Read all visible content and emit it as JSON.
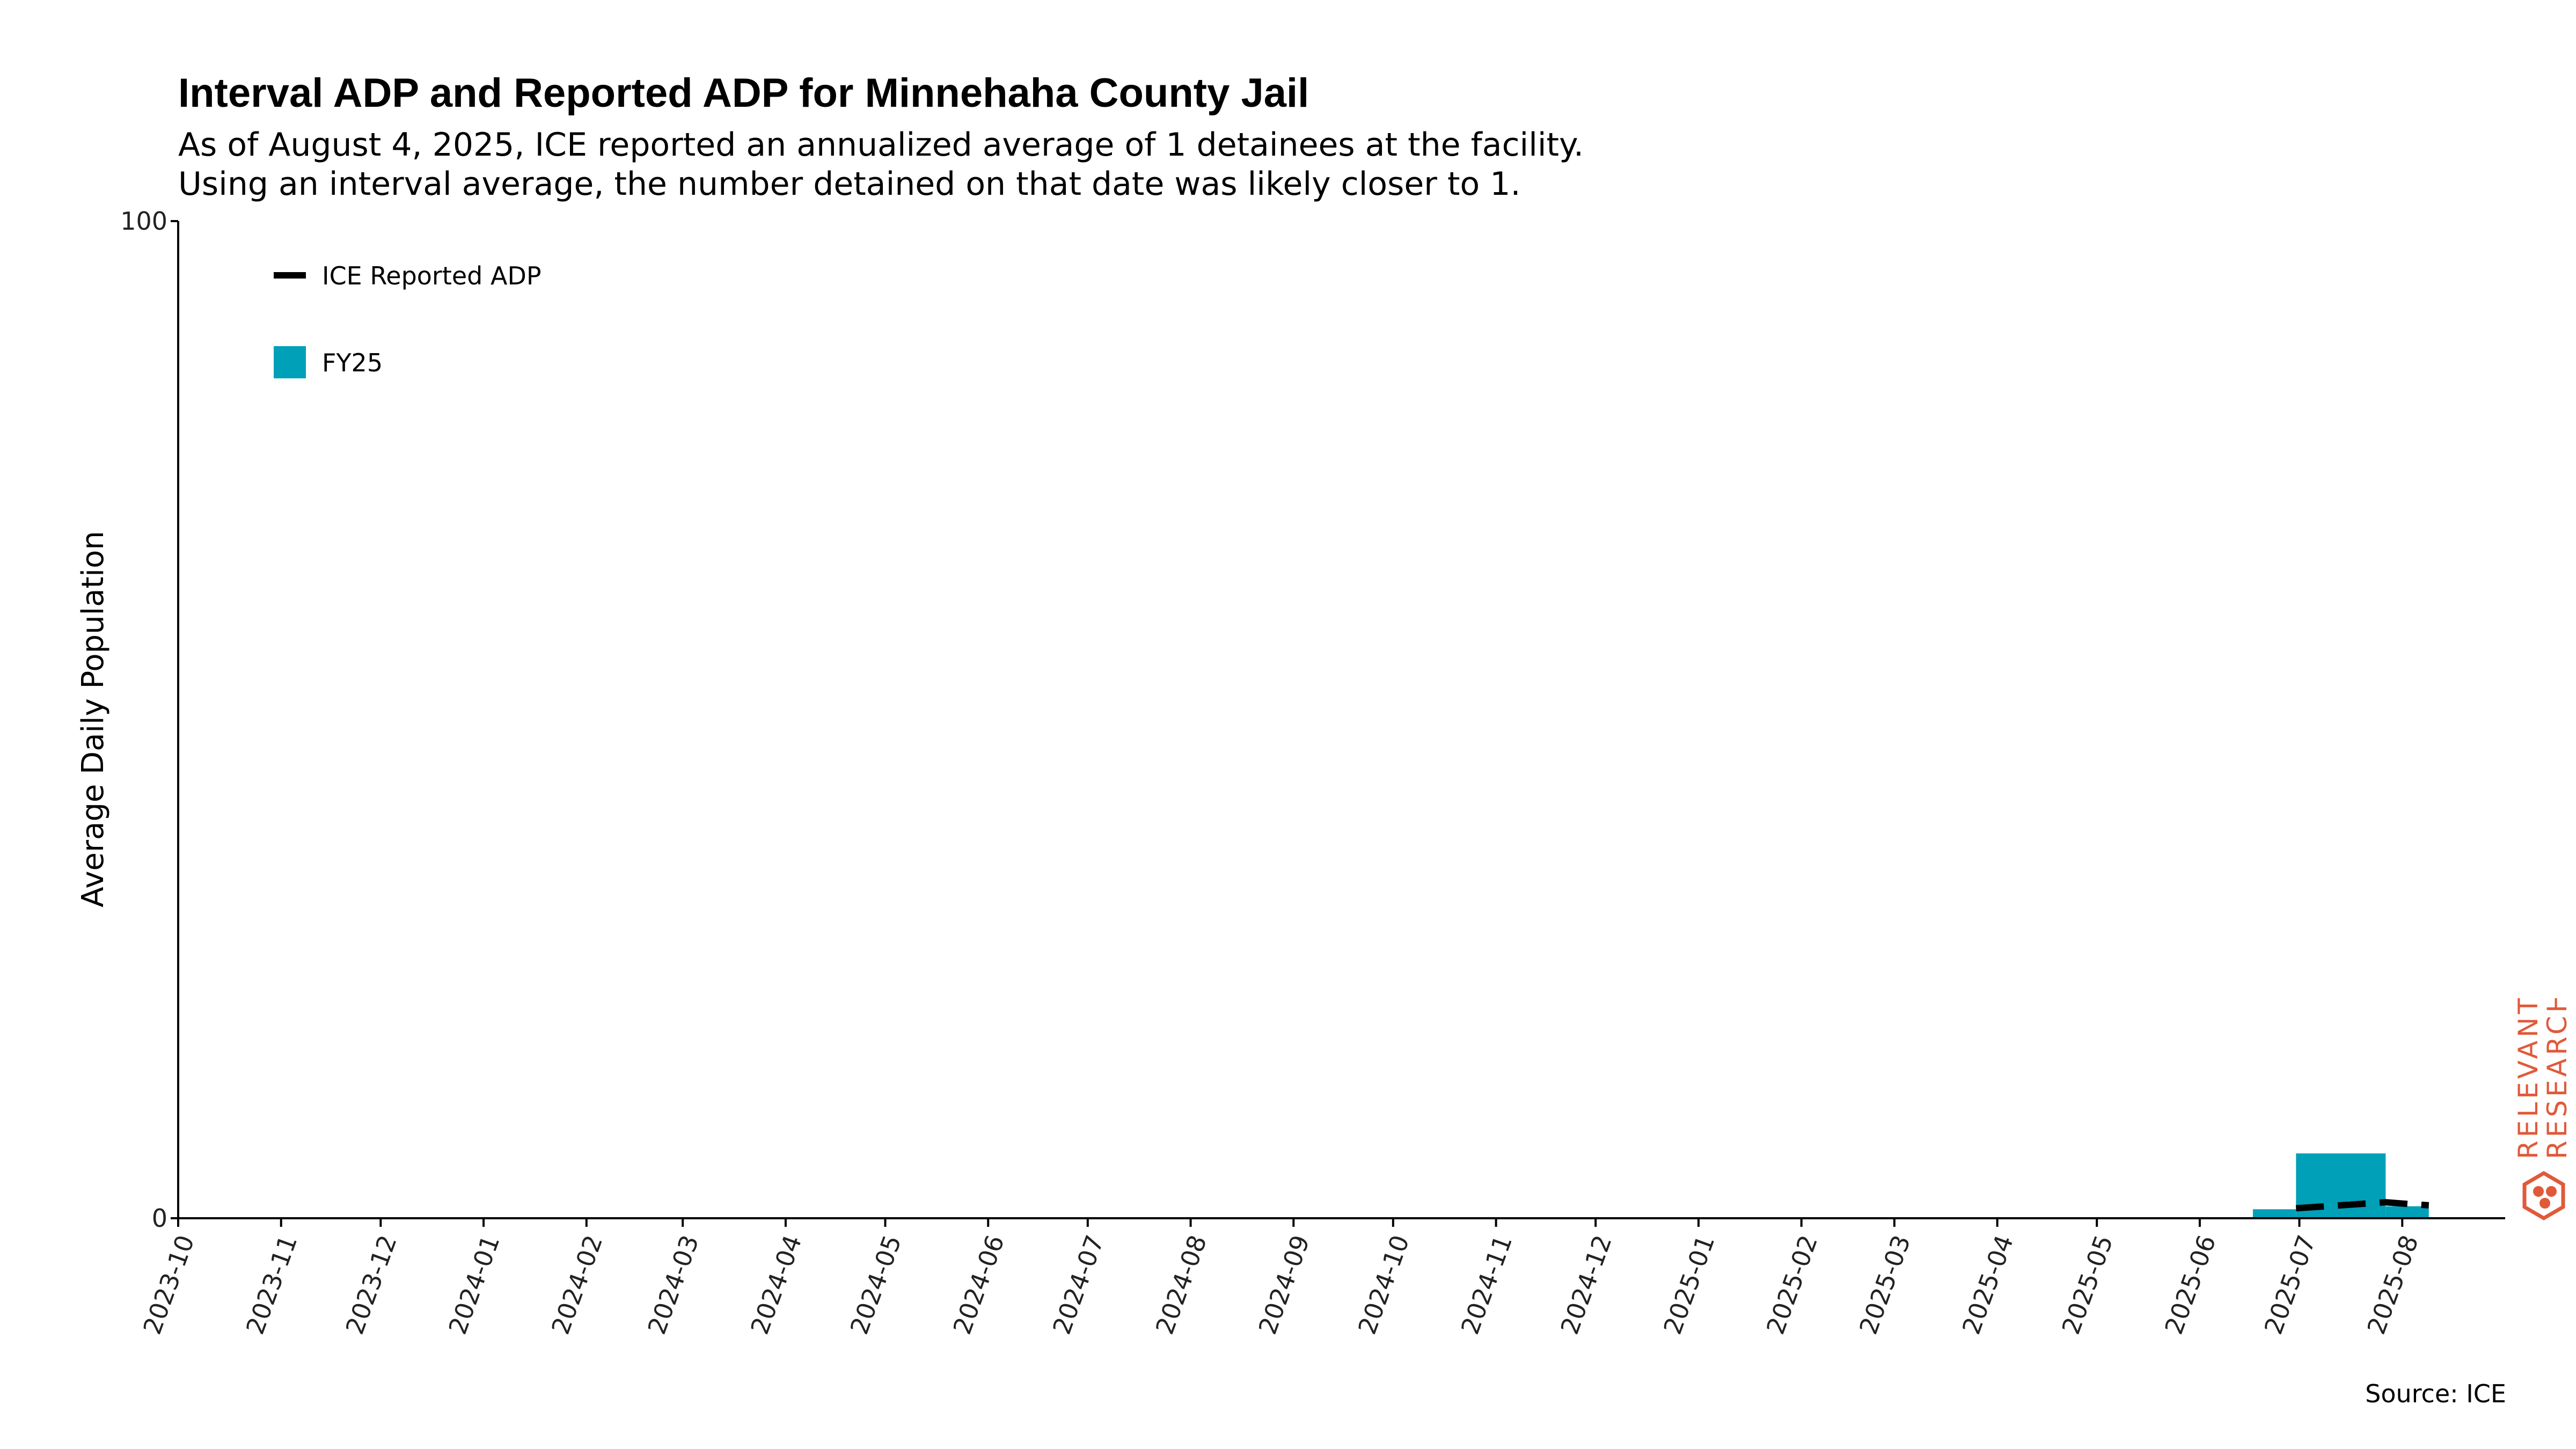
{
  "chart_data": {
    "type": "bar",
    "title": "Interval ADP and Reported ADP for Minnehaha County Jail",
    "subtitle": [
      "As of August 4, 2025, ICE reported an annualized average of 1 detainees at the facility.",
      "Using an interval average, the number detained on that date was likely closer to 1."
    ],
    "ylabel": "Average Daily Population",
    "xlabel": "",
    "ylim": [
      0,
      100
    ],
    "xlim": [
      "2023-10-01",
      "2025-09-01"
    ],
    "y_ticks": [
      "0",
      "100"
    ],
    "x_ticks": [
      "2023-10",
      "2023-11",
      "2023-12",
      "2024-01",
      "2024-02",
      "2024-03",
      "2024-04",
      "2024-05",
      "2024-06",
      "2024-07",
      "2024-08",
      "2024-09",
      "2024-10",
      "2024-11",
      "2024-12",
      "2025-01",
      "2025-02",
      "2025-03",
      "2025-04",
      "2025-05",
      "2025-06",
      "2025-07",
      "2025-08"
    ],
    "grid": false,
    "legend_position": "top-left",
    "legend": [
      {
        "label": "ICE Reported ADP",
        "kind": "line",
        "color": "#000000"
      },
      {
        "label": "FY25",
        "kind": "bar",
        "color": "#00a0b8"
      }
    ],
    "bars": {
      "series": "FY25",
      "color": "#00a0b8",
      "intervals": [
        {
          "start": "2025-06-17",
          "end": "2025-06-30",
          "value": 0.9
        },
        {
          "start": "2025-06-30",
          "end": "2025-07-27",
          "value": 6.5
        },
        {
          "start": "2025-07-27",
          "end": "2025-08-09",
          "value": 1.2
        }
      ]
    },
    "line": {
      "series": "ICE Reported ADP",
      "color": "#000000",
      "points": [
        {
          "x": "2025-06-30",
          "y": 1.0
        },
        {
          "x": "2025-07-27",
          "y": 1.6
        },
        {
          "x": "2025-08-04",
          "y": 1.4
        },
        {
          "x": "2025-08-09",
          "y": 1.3
        }
      ]
    }
  },
  "source": "Source: ICE",
  "brand": {
    "line1": "RELEVANT",
    "line2": "RESEARCH",
    "color": "#e05a3a"
  }
}
